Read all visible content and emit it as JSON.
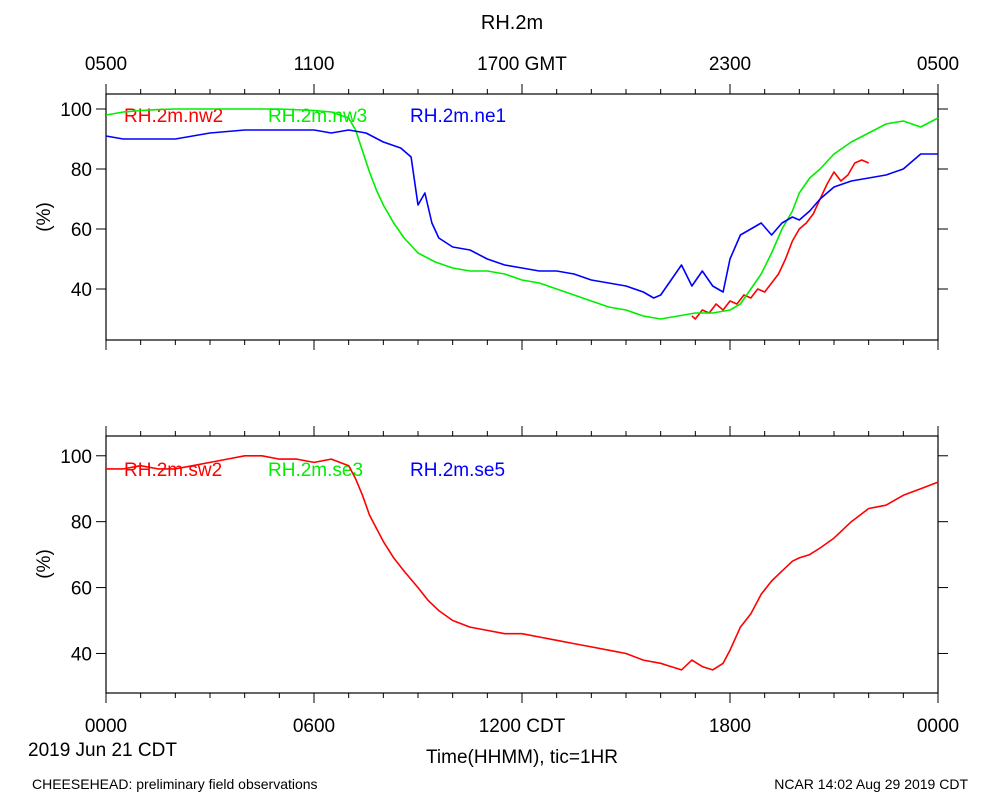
{
  "title": "RH.2m",
  "gmt_axis": {
    "labels": [
      "0500",
      "1100",
      "1700 GMT",
      "2300",
      "0500"
    ]
  },
  "cdt_axis": {
    "labels": [
      "0000",
      "0600",
      "1200 CDT",
      "1800",
      "0000"
    ],
    "date_label": "2019 Jun 21 CDT",
    "xlabel": "Time(HHMM), tic=1HR"
  },
  "footer": {
    "left": "CHEESEHEAD: preliminary field observations",
    "right": "NCAR 14:02 Aug 29 2019 CDT"
  },
  "colors": {
    "nw2": "#ff0000",
    "nw3": "#00ee00",
    "ne1": "#0000ff",
    "sw2": "#ff0000",
    "se3": "#00ee00",
    "se5": "#0000ff"
  },
  "chart_data": [
    {
      "type": "line",
      "title": "RH.2m",
      "xlabel": "",
      "ylabel": "(%)",
      "xlim": [
        0,
        24
      ],
      "ylim": [
        23,
        105
      ],
      "yticks": [
        40,
        60,
        80,
        100
      ],
      "ytick_labels": [
        "40",
        "60",
        "80",
        "100"
      ],
      "series": [
        {
          "name": "RH.2m.nw2",
          "color": "#ff0000",
          "x": [
            16.9,
            17.0,
            17.2,
            17.4,
            17.6,
            17.8,
            18.0,
            18.2,
            18.4,
            18.6,
            18.8,
            19.0,
            19.2,
            19.4,
            19.6,
            19.8,
            20.0,
            20.2,
            20.4,
            20.6,
            20.8,
            21.0,
            21.2,
            21.4,
            21.6,
            21.8,
            22.0
          ],
          "y": [
            31,
            30,
            33,
            32,
            35,
            33,
            36,
            35,
            38,
            37,
            40,
            39,
            42,
            45,
            50,
            56,
            60,
            62,
            65,
            70,
            75,
            79,
            76,
            78,
            82,
            83,
            82
          ]
        },
        {
          "name": "RH.2m.nw3",
          "color": "#00ee00",
          "x": [
            0,
            0.5,
            1,
            1.5,
            2,
            3,
            4,
            5,
            6,
            6.5,
            7.0,
            7.2,
            7.4,
            7.6,
            7.8,
            8.0,
            8.3,
            8.6,
            9.0,
            9.5,
            10,
            10.5,
            11,
            11.5,
            12,
            12.5,
            13,
            13.5,
            14,
            14.5,
            15,
            15.5,
            16,
            16.5,
            17,
            17.5,
            18,
            18.3,
            18.6,
            18.9,
            19.2,
            19.5,
            19.8,
            20.0,
            20.3,
            20.6,
            21.0,
            21.5,
            22.0,
            22.5,
            23.0,
            23.5,
            24.0
          ],
          "y": [
            98,
            99,
            99.5,
            99.8,
            100,
            100,
            100,
            100,
            99.5,
            99,
            97,
            93,
            86,
            79,
            73,
            68,
            62,
            57,
            52,
            49,
            47,
            46,
            46,
            45,
            43,
            42,
            40,
            38,
            36,
            34,
            33,
            31,
            30,
            31,
            32,
            32,
            33,
            35,
            40,
            45,
            52,
            60,
            66,
            72,
            77,
            80,
            85,
            89,
            92,
            95,
            96,
            94,
            97
          ]
        },
        {
          "name": "RH.2m.ne1",
          "color": "#0000ff",
          "x": [
            0,
            0.5,
            1,
            2,
            3,
            4,
            5,
            6,
            6.5,
            7,
            7.5,
            8,
            8.5,
            8.8,
            9.0,
            9.2,
            9.4,
            9.6,
            10,
            10.5,
            11,
            11.5,
            12,
            12.5,
            13,
            13.5,
            14,
            14.5,
            15,
            15.5,
            15.8,
            16,
            16.3,
            16.6,
            16.9,
            17.2,
            17.5,
            17.8,
            18.0,
            18.3,
            18.6,
            18.9,
            19.2,
            19.5,
            19.8,
            20.0,
            20.3,
            20.6,
            21.0,
            21.5,
            22.0,
            22.5,
            23.0,
            23.5,
            24.0
          ],
          "y": [
            91,
            90,
            90,
            90,
            92,
            93,
            93,
            93,
            92,
            93,
            92,
            89,
            87,
            84,
            68,
            72,
            62,
            57,
            54,
            53,
            50,
            48,
            47,
            46,
            46,
            45,
            43,
            42,
            41,
            39,
            37,
            38,
            43,
            48,
            41,
            46,
            41,
            39,
            50,
            58,
            60,
            62,
            58,
            62,
            64,
            63,
            66,
            70,
            74,
            76,
            77,
            78,
            80,
            85,
            85
          ]
        }
      ],
      "legend": [
        "RH.2m.nw2",
        "RH.2m.nw3",
        "RH.2m.ne1"
      ],
      "legend_position": "top-left inside"
    },
    {
      "type": "line",
      "xlabel": "Time(HHMM), tic=1HR",
      "ylabel": "(%)",
      "xlim": [
        0,
        24
      ],
      "ylim": [
        28,
        106
      ],
      "yticks": [
        40,
        60,
        80,
        100
      ],
      "ytick_labels": [
        "40",
        "60",
        "80",
        "100"
      ],
      "series": [
        {
          "name": "RH.2m.sw2",
          "color": "#ff0000",
          "x": [
            0,
            0.5,
            1,
            1.5,
            2,
            2.5,
            3,
            3.5,
            4,
            4.5,
            5,
            5.5,
            6,
            6.5,
            7.0,
            7.2,
            7.4,
            7.6,
            7.8,
            8.0,
            8.3,
            8.6,
            9.0,
            9.3,
            9.6,
            10.0,
            10.5,
            11.0,
            11.5,
            12.0,
            12.5,
            13.0,
            13.5,
            14.0,
            14.5,
            15.0,
            15.5,
            16.0,
            16.3,
            16.6,
            16.9,
            17.2,
            17.5,
            17.8,
            18.0,
            18.3,
            18.6,
            18.9,
            19.2,
            19.5,
            19.8,
            20.0,
            20.3,
            20.6,
            21.0,
            21.5,
            22.0,
            22.5,
            23.0,
            23.5,
            24.0
          ],
          "y": [
            96,
            96,
            97,
            96,
            96,
            97,
            98,
            99,
            100,
            100,
            99,
            99,
            98,
            99,
            97,
            93,
            88,
            82,
            78,
            74,
            69,
            65,
            60,
            56,
            53,
            50,
            48,
            47,
            46,
            46,
            45,
            44,
            43,
            42,
            41,
            40,
            38,
            37,
            36,
            35,
            38,
            36,
            35,
            37,
            41,
            48,
            52,
            58,
            62,
            65,
            68,
            69,
            70,
            72,
            75,
            80,
            84,
            85,
            88,
            90,
            92
          ]
        }
      ],
      "legend": [
        "RH.2m.sw2",
        "RH.2m.se3",
        "RH.2m.se5"
      ],
      "legend_position": "top-left inside"
    }
  ]
}
